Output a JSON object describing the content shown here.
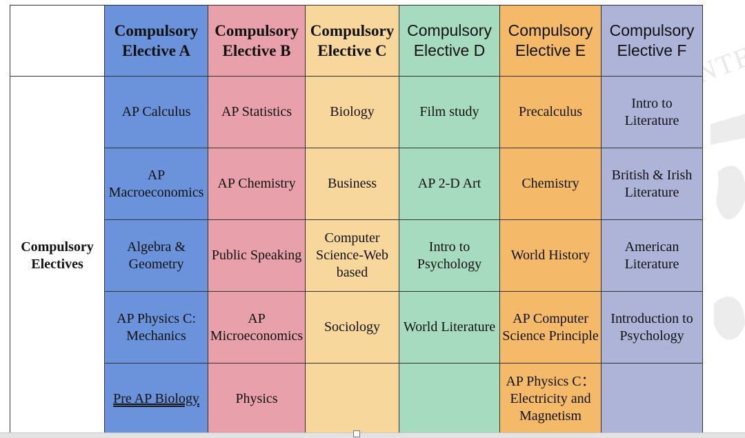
{
  "row_header": "Compulsory Electives",
  "columns": [
    {
      "header": "Compulsory Elective A",
      "cells": [
        "AP Calculus",
        "AP Macroeconomics",
        "Algebra & Geometry",
        "AP Physics C: Mechanics",
        "Pre AP Biology"
      ]
    },
    {
      "header": "Compulsory Elective B",
      "cells": [
        "AP Statistics",
        "AP Chemistry",
        "Public Speaking",
        "AP Microeconomics",
        "Physics"
      ]
    },
    {
      "header": "Compulsory Elective C",
      "cells": [
        "Biology",
        "Business",
        "Computer Science-Web based",
        "Sociology",
        ""
      ]
    },
    {
      "header": "Compulsory Elective D",
      "cells": [
        "Film study",
        "AP 2-D Art",
        "Intro to Psychology",
        "World Literature",
        ""
      ]
    },
    {
      "header": "Compulsory Elective E",
      "cells": [
        "Precalculus",
        "Chemistry",
        "World History",
        "AP Computer Science Principle",
        "AP Physics C： Electricity and Magnetism"
      ]
    },
    {
      "header": "Compulsory Elective F",
      "cells": [
        "Intro to Literature",
        "British & Irish Literature",
        "American Literature",
        "Introduction to Psychology",
        ""
      ]
    }
  ],
  "colors": {
    "A": "#6a93db",
    "B": "#e8a1aa",
    "C": "#f7d79b",
    "D": "#a6dbbf",
    "E": "#f5b96a",
    "F": "#adb4d8"
  }
}
